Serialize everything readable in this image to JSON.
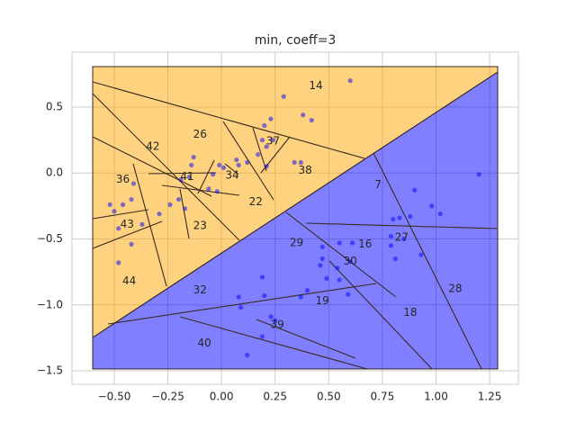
{
  "chart_data": {
    "type": "scatter",
    "title": "min, coeff=3",
    "xlim": [
      -0.697,
      1.384
    ],
    "ylim": [
      -1.602,
      0.916
    ],
    "xticks": [
      {
        "value": -0.5,
        "label": "−0.50"
      },
      {
        "value": -0.25,
        "label": "−0.25"
      },
      {
        "value": 0,
        "label": "0.00"
      },
      {
        "value": 0.25,
        "label": "0.25"
      },
      {
        "value": 0.5,
        "label": "0.50"
      },
      {
        "value": 0.75,
        "label": "0.75"
      },
      {
        "value": 1,
        "label": "1.00"
      },
      {
        "value": 1.25,
        "label": "1.25"
      }
    ],
    "yticks": [
      {
        "value": 0.5,
        "label": "0.5"
      },
      {
        "value": 0,
        "label": "0.0"
      },
      {
        "value": -0.5,
        "label": "−0.5"
      },
      {
        "value": -1,
        "label": "−1.0"
      },
      {
        "value": -1.5,
        "label": "−1.5"
      }
    ],
    "grid": true,
    "color": "#0000ff",
    "alpha": 0.5,
    "x": [
      0.6,
      0.29,
      0.38,
      0.42,
      0.23,
      0.2,
      0.19,
      0.24,
      0.21,
      0.17,
      0.21,
      0.12,
      0.07,
      0.08,
      0.01,
      -0.01,
      -0.04,
      -0.02,
      -0.06,
      -0.13,
      -0.14,
      -0.15,
      -0.19,
      -0.2,
      -0.17,
      -0.24,
      -0.29,
      -0.41,
      -0.42,
      -0.46,
      -0.52,
      -0.5,
      -0.48,
      -0.42,
      -0.37,
      -0.48,
      0.34,
      0.37,
      1.2,
      0.9,
      0.98,
      1.02,
      0.83,
      0.8,
      0.88,
      0.85,
      0.79,
      0.79,
      0.81,
      0.93,
      0.61,
      0.55,
      0.47,
      0.47,
      0.46,
      0.54,
      0.6,
      0.55,
      0.59,
      0.49,
      0.4,
      0.37,
      0.19,
      0.2,
      0.08,
      0.09,
      0.23,
      0.25,
      0.19,
      0.12
    ],
    "values": [
      0.7,
      0.58,
      0.44,
      0.4,
      0.41,
      0.36,
      0.25,
      0.25,
      0.2,
      0.14,
      0.05,
      0.08,
      0.1,
      0.06,
      0.04,
      0.06,
      -0.01,
      -0.14,
      -0.12,
      0.12,
      0.06,
      -0.03,
      -0.05,
      -0.2,
      -0.27,
      -0.24,
      -0.31,
      -0.08,
      -0.2,
      -0.24,
      -0.24,
      -0.29,
      -0.42,
      -0.54,
      -0.39,
      -0.68,
      0.08,
      0.08,
      -0.01,
      -0.13,
      -0.25,
      -0.31,
      -0.34,
      -0.35,
      -0.33,
      -0.5,
      -0.48,
      -0.55,
      -0.65,
      -0.62,
      -0.53,
      -0.53,
      -0.56,
      -0.65,
      -0.7,
      -0.72,
      -0.67,
      -0.81,
      -0.92,
      -0.8,
      -0.89,
      -0.94,
      -0.79,
      -0.93,
      -0.94,
      -1.02,
      -1.09,
      -1.12,
      -1.24,
      -1.38
    ],
    "annotations": [
      {
        "text": "14",
        "x": 0.44,
        "y": 0.66
      },
      {
        "text": "26",
        "x": -0.1,
        "y": 0.29
      },
      {
        "text": "37",
        "x": 0.24,
        "y": 0.24
      },
      {
        "text": "42",
        "x": -0.32,
        "y": 0.2
      },
      {
        "text": "38",
        "x": 0.39,
        "y": 0.02
      },
      {
        "text": "7",
        "x": 0.73,
        "y": -0.09
      },
      {
        "text": "36",
        "x": -0.46,
        "y": -0.05
      },
      {
        "text": "41",
        "x": -0.16,
        "y": -0.03
      },
      {
        "text": "34",
        "x": 0.05,
        "y": -0.02
      },
      {
        "text": "22",
        "x": 0.16,
        "y": -0.22
      },
      {
        "text": "43",
        "x": -0.44,
        "y": -0.39
      },
      {
        "text": "23",
        "x": -0.1,
        "y": -0.4
      },
      {
        "text": "29",
        "x": 0.35,
        "y": -0.53
      },
      {
        "text": "16",
        "x": 0.67,
        "y": -0.54
      },
      {
        "text": "27",
        "x": 0.84,
        "y": -0.49
      },
      {
        "text": "30",
        "x": 0.6,
        "y": -0.67
      },
      {
        "text": "44",
        "x": -0.43,
        "y": -0.82
      },
      {
        "text": "32",
        "x": -0.1,
        "y": -0.89
      },
      {
        "text": "28",
        "x": 1.09,
        "y": -0.88
      },
      {
        "text": "19",
        "x": 0.47,
        "y": -0.97
      },
      {
        "text": "18",
        "x": 0.88,
        "y": -1.06
      },
      {
        "text": "39",
        "x": 0.26,
        "y": -1.15
      },
      {
        "text": "40",
        "x": -0.08,
        "y": -1.29
      }
    ]
  }
}
